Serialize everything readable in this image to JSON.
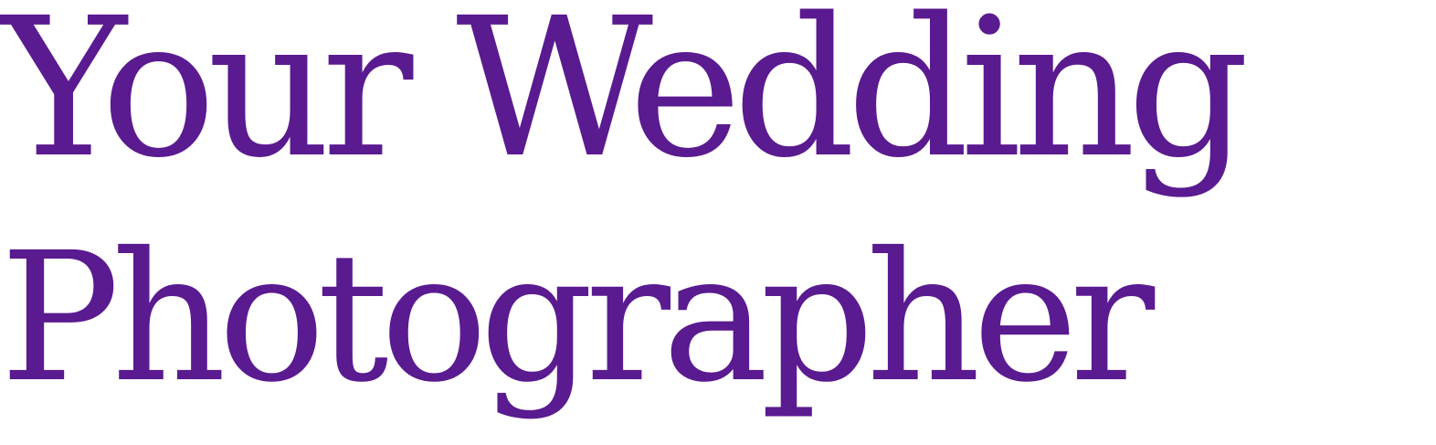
{
  "headline": {
    "line1": "Your Wedding",
    "line2": "Photographer"
  },
  "colors": {
    "text": "#5a1a90",
    "background": "#ffffff"
  }
}
